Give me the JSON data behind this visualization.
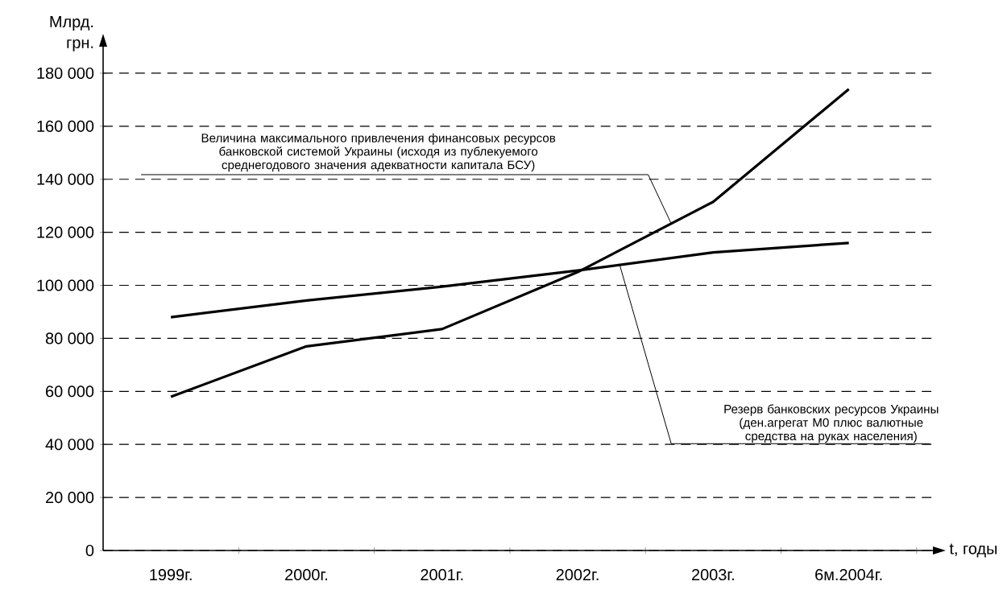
{
  "chart_data": {
    "type": "line",
    "xlabel": "t, годы",
    "ylabel": "Млрд. грн.",
    "categories": [
      "1999г.",
      "2000г.",
      "2001г.",
      "2002г.",
      "2003г.",
      "6м.2004г."
    ],
    "series": [
      {
        "name": "Величина максимального привлечения финансовых ресурсов банковской системой Украины (исходя из публекуемого среднегодового значения адекватности капитала БСУ)",
        "color": "#000000",
        "values": [
          58000,
          77000,
          83500,
          105000,
          131500,
          174000
        ]
      },
      {
        "name": "Резерв банковских ресурсов Украины (ден.агрегат М0 плюс валютные средства на руках населения)",
        "color": "#000000",
        "values": [
          88000,
          94300,
          99500,
          105600,
          112400,
          116000
        ]
      }
    ],
    "ylim": [
      0,
      190000
    ],
    "yticks": [
      0,
      {
        "value": 20000,
        "label": "20 000"
      },
      {
        "value": 40000,
        "label": "40 000"
      },
      {
        "value": 60000,
        "label": "60 000"
      },
      {
        "value": 80000,
        "label": "80 000"
      },
      {
        "value": 100000,
        "label": "100 000"
      },
      {
        "value": 120000,
        "label": "120 000"
      },
      {
        "value": 140000,
        "label": "140 000"
      },
      {
        "value": 160000,
        "label": "160 000"
      },
      {
        "value": 180000,
        "label": "180 000"
      }
    ],
    "grid": "y",
    "marker": "none",
    "line_style": "solid",
    "legend": false
  }
}
